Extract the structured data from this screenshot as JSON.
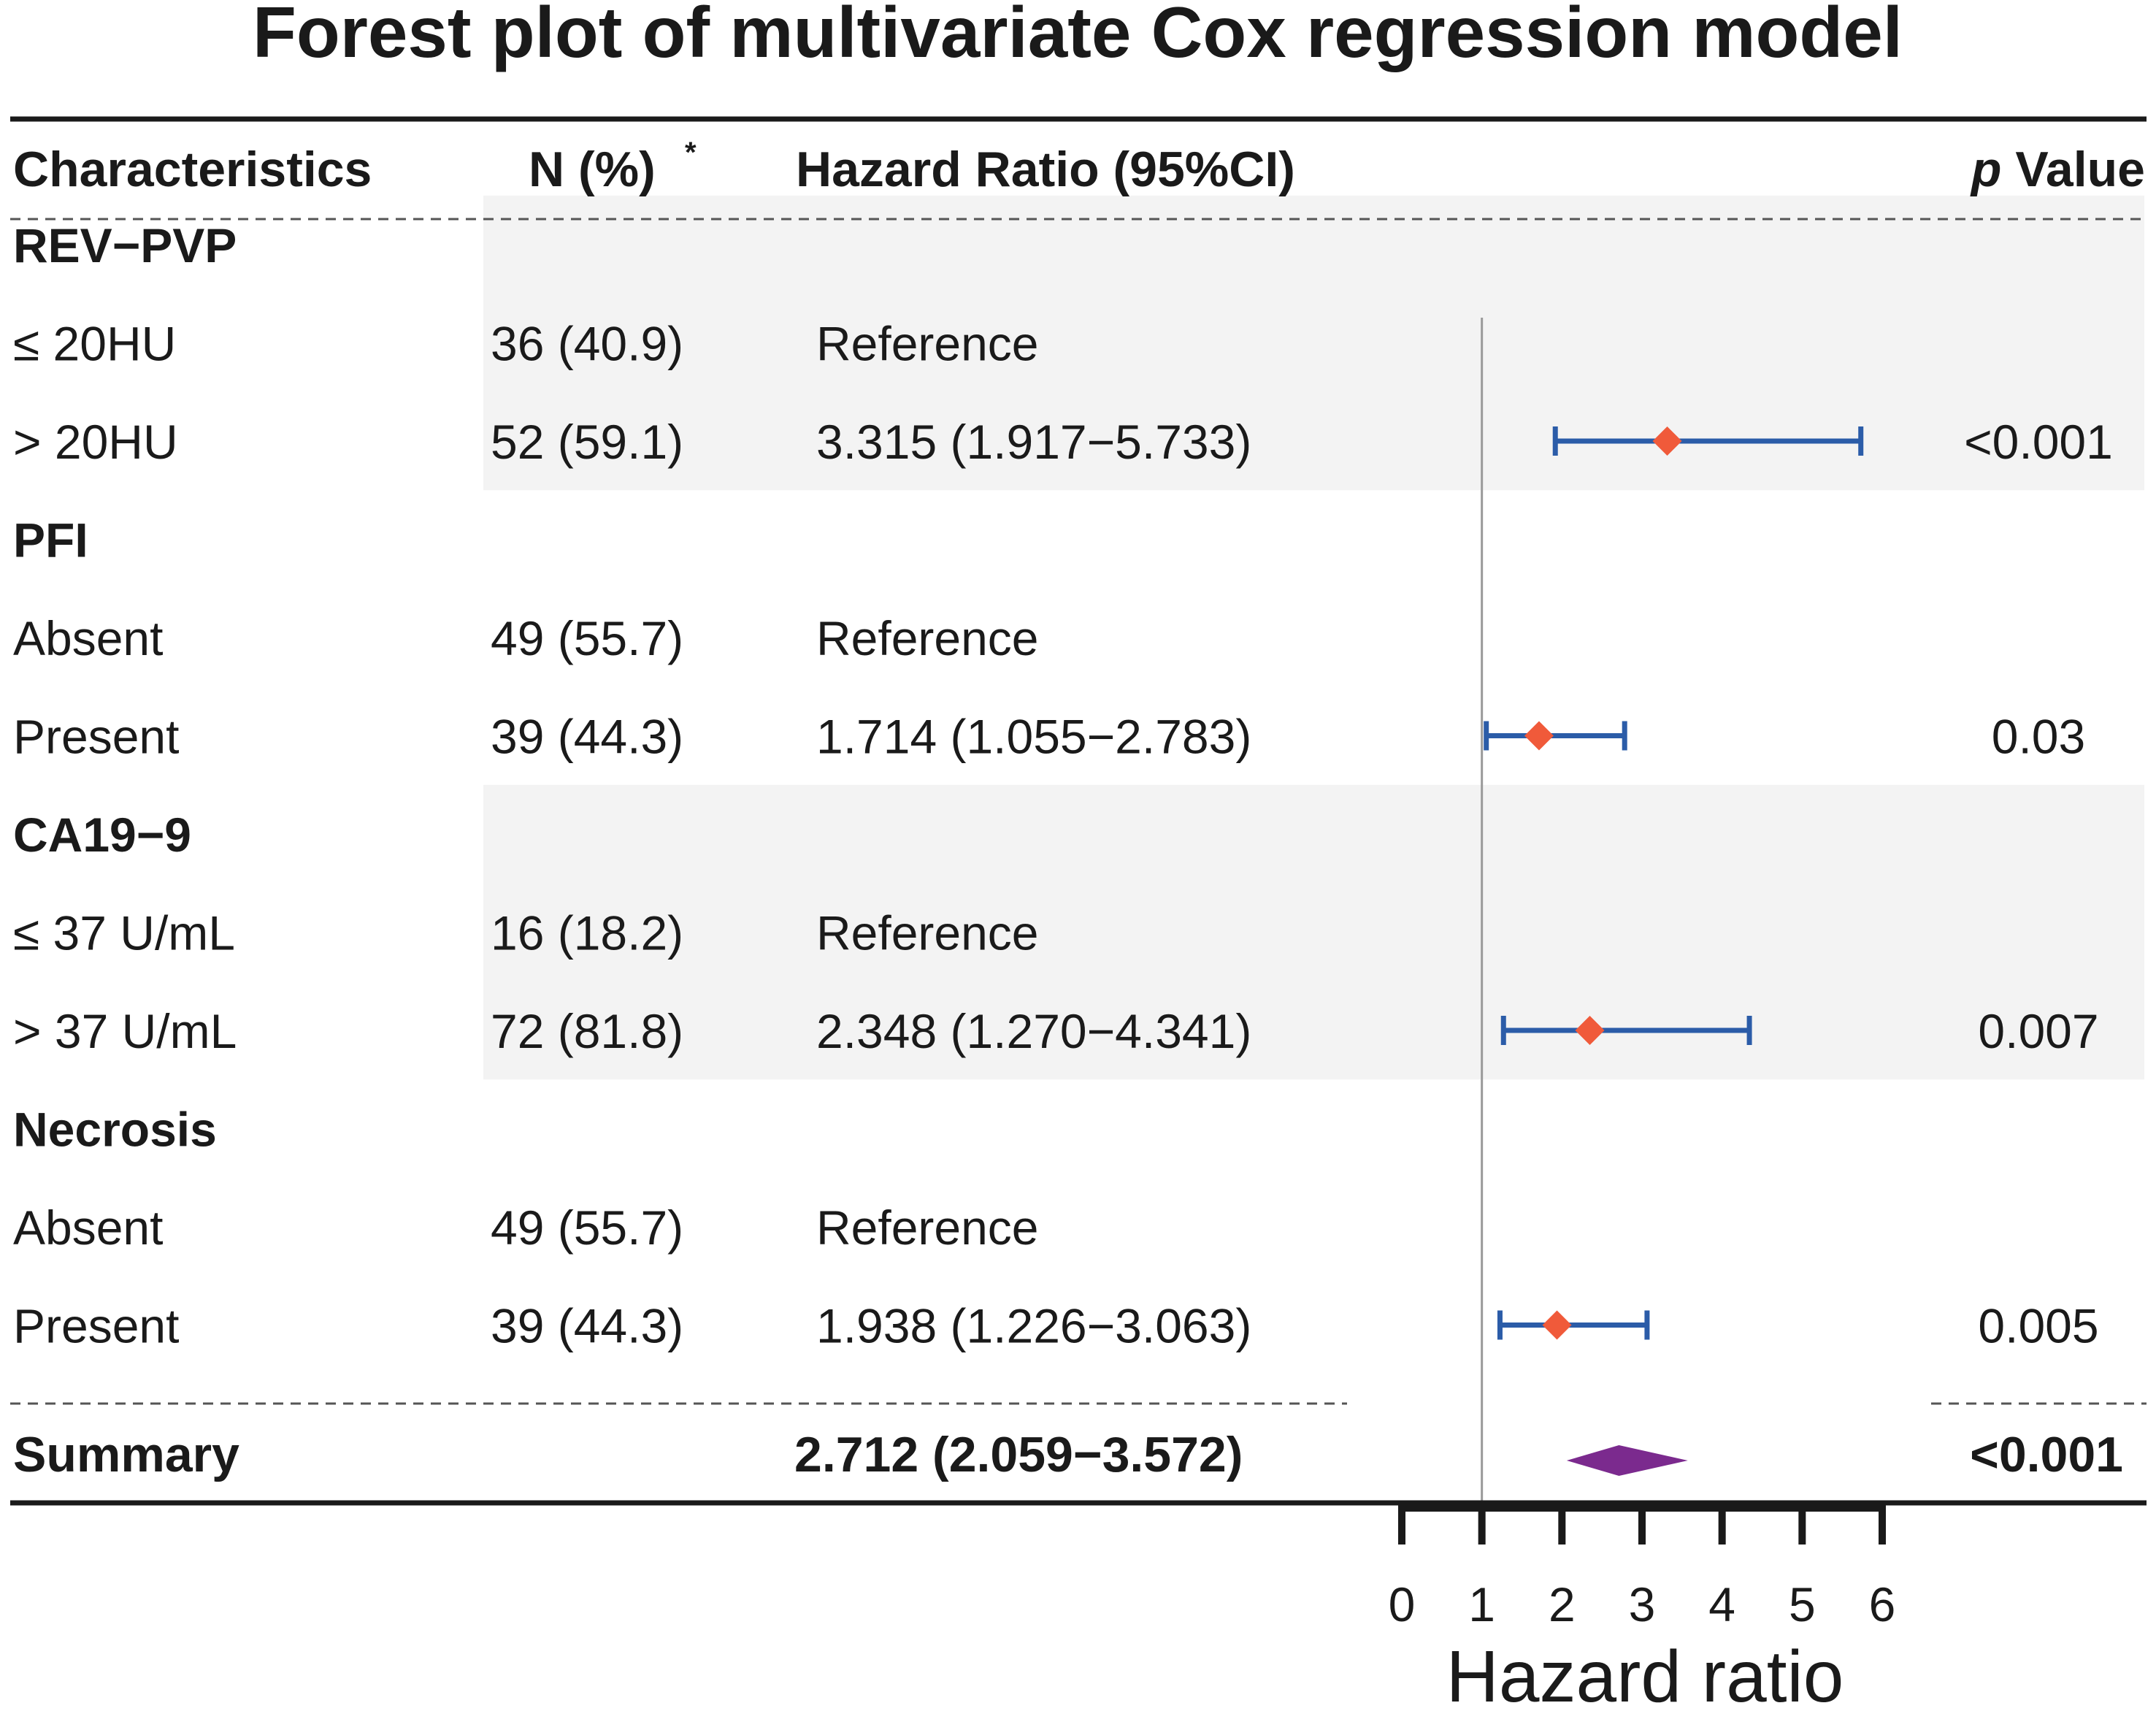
{
  "chart_data": {
    "type": "forest",
    "title": "Forest plot of multivariate Cox regression model",
    "headers": {
      "characteristics": "Characteristics",
      "n": "N (%)",
      "n_marker": "*",
      "hr": "Hazard Ratio (95%CI)",
      "p_italic": "p",
      "p_rest": " Value"
    },
    "rows": [
      {
        "label": "REV−PVP",
        "group": true,
        "n": "",
        "hr_text": "",
        "p": "",
        "shaded": true
      },
      {
        "label": "≤ 20HU",
        "group": false,
        "n": "36 (40.9)",
        "hr_text": "Reference",
        "p": "",
        "shaded": true
      },
      {
        "label": "> 20HU",
        "group": false,
        "n": "52 (59.1)",
        "hr_text": "3.315 (1.917−5.733)",
        "p": "<0.001",
        "hr": 3.315,
        "lo": 1.917,
        "hi": 5.733,
        "shaded": true
      },
      {
        "label": "PFI",
        "group": true,
        "n": "",
        "hr_text": "",
        "p": "",
        "shaded": false
      },
      {
        "label": "Absent",
        "group": false,
        "n": "49 (55.7)",
        "hr_text": "Reference",
        "p": "",
        "shaded": false
      },
      {
        "label": "Present",
        "group": false,
        "n": "39 (44.3)",
        "hr_text": "1.714 (1.055−2.783)",
        "p": "0.03",
        "hr": 1.714,
        "lo": 1.055,
        "hi": 2.783,
        "shaded": false
      },
      {
        "label": "CA19−9",
        "group": true,
        "n": "",
        "hr_text": "",
        "p": "",
        "shaded": true
      },
      {
        "label": "≤ 37 U/mL",
        "group": false,
        "n": "16 (18.2)",
        "hr_text": "Reference",
        "p": "",
        "shaded": true
      },
      {
        "label": "> 37 U/mL",
        "group": false,
        "n": "72 (81.8)",
        "hr_text": "2.348 (1.270−4.341)",
        "p": "0.007",
        "hr": 2.348,
        "lo": 1.27,
        "hi": 4.341,
        "shaded": true
      },
      {
        "label": "Necrosis",
        "group": true,
        "n": "",
        "hr_text": "",
        "p": "",
        "shaded": false
      },
      {
        "label": "Absent",
        "group": false,
        "n": "49 (55.7)",
        "hr_text": "Reference",
        "p": "",
        "shaded": false
      },
      {
        "label": "Present",
        "group": false,
        "n": "39 (44.3)",
        "hr_text": "1.938 (1.226−3.063)",
        "p": "0.005",
        "hr": 1.938,
        "lo": 1.226,
        "hi": 3.063,
        "shaded": false
      }
    ],
    "summary": {
      "label": "Summary",
      "hr_text": "2.712 (2.059−3.572)",
      "p": "<0.001",
      "hr": 2.712,
      "lo": 2.059,
      "hi": 3.572
    },
    "xaxis": {
      "label": "Hazard ratio",
      "ticks": [
        0,
        1,
        2,
        3,
        4,
        5,
        6
      ],
      "range": [
        0,
        6
      ],
      "reference": 1
    },
    "colors": {
      "ci_line": "#2b5ca8",
      "point": "#f05a3a",
      "summary": "#7b2a8e",
      "shade": "#f3f3f3",
      "ref_line": "#9a9a9a",
      "text": "#1a1a1a"
    }
  }
}
